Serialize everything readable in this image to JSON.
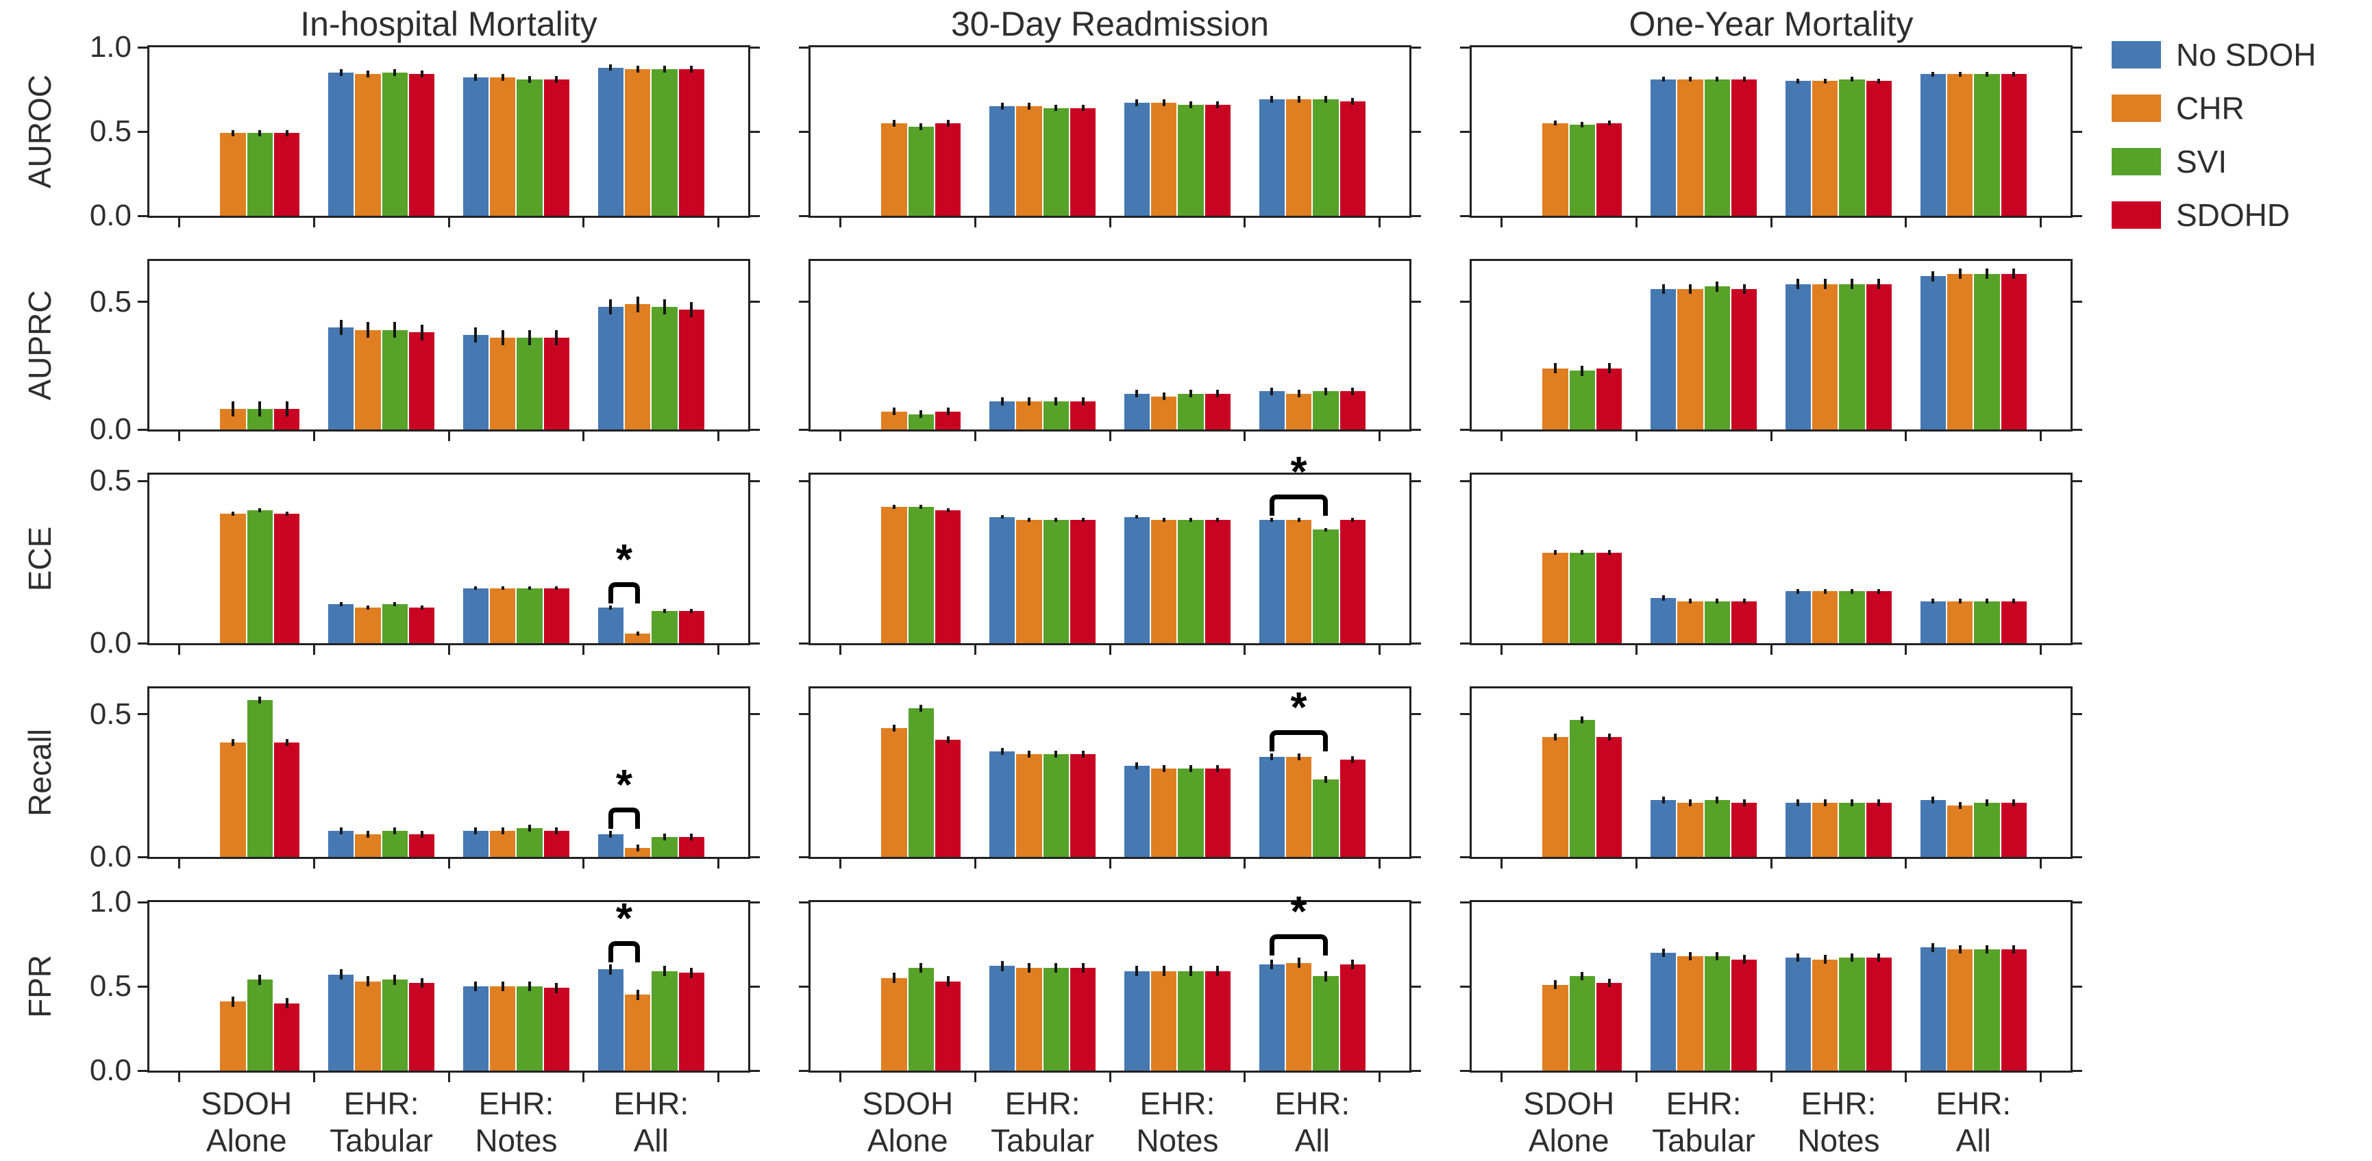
{
  "chart_data": {
    "type": "bar",
    "outcomes": [
      "In-hospital Mortality",
      "30-Day Readmission",
      "One-Year Mortality"
    ],
    "metrics": [
      "AUROC",
      "AUPRC",
      "ECE",
      "Recall",
      "FPR"
    ],
    "categories": [
      "SDOH Alone",
      "EHR: Tabular",
      "EHR: Notes",
      "EHR: All"
    ],
    "categories_lines": [
      [
        "SDOH",
        "Alone"
      ],
      [
        "EHR:",
        "Tabular"
      ],
      [
        "EHR:",
        "Notes"
      ],
      [
        "EHR:",
        "All"
      ]
    ],
    "series": [
      {
        "name": "No SDOH",
        "color": "#4678b2"
      },
      {
        "name": "CHR",
        "color": "#e07e22"
      },
      {
        "name": "SVI",
        "color": "#57a229"
      },
      {
        "name": "SDOHD",
        "color": "#c90322"
      }
    ],
    "sig_label": "*",
    "panels": [
      {
        "metric": "AUROC",
        "outcome": "In-hospital Mortality",
        "ylim": [
          0,
          1.0
        ],
        "ytick_values": [
          0,
          0.5,
          1
        ],
        "ytick_labels": [
          "0.0",
          "0.5",
          "1.0"
        ],
        "err": 0.02,
        "sig": null,
        "values": [
          [
            null,
            0.49,
            0.49,
            0.49
          ],
          [
            0.85,
            0.84,
            0.85,
            0.84
          ],
          [
            0.82,
            0.82,
            0.81,
            0.81
          ],
          [
            0.88,
            0.87,
            0.87,
            0.87
          ]
        ]
      },
      {
        "metric": "AUROC",
        "outcome": "30-Day Readmission",
        "ylim": [
          0,
          1.0
        ],
        "ytick_values": [
          0,
          0.5,
          1
        ],
        "ytick_labels": [
          "0.0",
          "0.5",
          "1.0"
        ],
        "err": 0.02,
        "sig": null,
        "values": [
          [
            null,
            0.55,
            0.53,
            0.55
          ],
          [
            0.65,
            0.65,
            0.64,
            0.64
          ],
          [
            0.67,
            0.67,
            0.66,
            0.66
          ],
          [
            0.69,
            0.69,
            0.69,
            0.68
          ]
        ]
      },
      {
        "metric": "AUROC",
        "outcome": "One-Year Mortality",
        "ylim": [
          0,
          1.0
        ],
        "ytick_values": [
          0,
          0.5,
          1
        ],
        "ytick_labels": [
          "0.0",
          "0.5",
          "1.0"
        ],
        "err": 0.015,
        "sig": null,
        "values": [
          [
            null,
            0.55,
            0.54,
            0.55
          ],
          [
            0.81,
            0.81,
            0.81,
            0.81
          ],
          [
            0.8,
            0.8,
            0.81,
            0.8
          ],
          [
            0.84,
            0.84,
            0.84,
            0.84
          ]
        ]
      },
      {
        "metric": "AUPRC",
        "outcome": "In-hospital Mortality",
        "ylim": [
          0,
          0.66
        ],
        "ytick_values": [
          0,
          0.5
        ],
        "ytick_labels": [
          "0.0",
          "0.5"
        ],
        "err": 0.03,
        "sig": null,
        "values": [
          [
            null,
            0.08,
            0.08,
            0.08
          ],
          [
            0.4,
            0.39,
            0.39,
            0.38
          ],
          [
            0.37,
            0.36,
            0.36,
            0.36
          ],
          [
            0.48,
            0.49,
            0.48,
            0.47
          ]
        ]
      },
      {
        "metric": "AUPRC",
        "outcome": "30-Day Readmission",
        "ylim": [
          0,
          0.66
        ],
        "ytick_values": [
          0,
          0.5
        ],
        "ytick_labels": [
          "0.0",
          "0.5"
        ],
        "err": 0.015,
        "sig": null,
        "values": [
          [
            null,
            0.07,
            0.06,
            0.07
          ],
          [
            0.11,
            0.11,
            0.11,
            0.11
          ],
          [
            0.14,
            0.13,
            0.14,
            0.14
          ],
          [
            0.15,
            0.14,
            0.15,
            0.15
          ]
        ]
      },
      {
        "metric": "AUPRC",
        "outcome": "One-Year Mortality",
        "ylim": [
          0,
          0.66
        ],
        "ytick_values": [
          0,
          0.5
        ],
        "ytick_labels": [
          "0.0",
          "0.5"
        ],
        "err": 0.02,
        "sig": null,
        "values": [
          [
            null,
            0.24,
            0.23,
            0.24
          ],
          [
            0.55,
            0.55,
            0.56,
            0.55
          ],
          [
            0.57,
            0.57,
            0.57,
            0.57
          ],
          [
            0.6,
            0.61,
            0.61,
            0.61
          ]
        ]
      },
      {
        "metric": "ECE",
        "outcome": "In-hospital Mortality",
        "ylim": [
          0,
          0.52
        ],
        "ytick_values": [
          0,
          0.5
        ],
        "ytick_labels": [
          "0.0",
          "0.5"
        ],
        "err": 0.006,
        "sig": {
          "group": 3,
          "from": 0,
          "to": 1
        },
        "values": [
          [
            null,
            0.4,
            0.41,
            0.4
          ],
          [
            0.12,
            0.11,
            0.12,
            0.11
          ],
          [
            0.17,
            0.17,
            0.17,
            0.17
          ],
          [
            0.11,
            0.03,
            0.1,
            0.1
          ]
        ]
      },
      {
        "metric": "ECE",
        "outcome": "30-Day Readmission",
        "ylim": [
          0,
          0.52
        ],
        "ytick_values": [
          0,
          0.5
        ],
        "ytick_labels": [
          "0.0",
          "0.5"
        ],
        "err": 0.006,
        "sig": {
          "group": 3,
          "from": 0,
          "to": 2
        },
        "values": [
          [
            null,
            0.42,
            0.42,
            0.41
          ],
          [
            0.39,
            0.38,
            0.38,
            0.38
          ],
          [
            0.39,
            0.38,
            0.38,
            0.38
          ],
          [
            0.38,
            0.38,
            0.35,
            0.38
          ]
        ]
      },
      {
        "metric": "ECE",
        "outcome": "One-Year Mortality",
        "ylim": [
          0,
          0.52
        ],
        "ytick_values": [
          0,
          0.5
        ],
        "ytick_labels": [
          "0.0",
          "0.5"
        ],
        "err": 0.008,
        "sig": null,
        "values": [
          [
            null,
            0.28,
            0.28,
            0.28
          ],
          [
            0.14,
            0.13,
            0.13,
            0.13
          ],
          [
            0.16,
            0.16,
            0.16,
            0.16
          ],
          [
            0.13,
            0.13,
            0.13,
            0.13
          ]
        ]
      },
      {
        "metric": "Recall",
        "outcome": "In-hospital Mortality",
        "ylim": [
          0,
          0.59
        ],
        "ytick_values": [
          0,
          0.5
        ],
        "ytick_labels": [
          "0.0",
          "0.5"
        ],
        "err": 0.012,
        "sig": {
          "group": 3,
          "from": 0,
          "to": 1
        },
        "values": [
          [
            null,
            0.4,
            0.55,
            0.4
          ],
          [
            0.09,
            0.08,
            0.09,
            0.08
          ],
          [
            0.09,
            0.09,
            0.1,
            0.09
          ],
          [
            0.08,
            0.03,
            0.07,
            0.07
          ]
        ]
      },
      {
        "metric": "Recall",
        "outcome": "30-Day Readmission",
        "ylim": [
          0,
          0.59
        ],
        "ytick_values": [
          0,
          0.5
        ],
        "ytick_labels": [
          "0.0",
          "0.5"
        ],
        "err": 0.012,
        "sig": {
          "group": 3,
          "from": 0,
          "to": 2
        },
        "values": [
          [
            null,
            0.45,
            0.52,
            0.41
          ],
          [
            0.37,
            0.36,
            0.36,
            0.36
          ],
          [
            0.32,
            0.31,
            0.31,
            0.31
          ],
          [
            0.35,
            0.35,
            0.27,
            0.34
          ]
        ]
      },
      {
        "metric": "Recall",
        "outcome": "One-Year Mortality",
        "ylim": [
          0,
          0.59
        ],
        "ytick_values": [
          0,
          0.5
        ],
        "ytick_labels": [
          "0.0",
          "0.5"
        ],
        "err": 0.012,
        "sig": null,
        "values": [
          [
            null,
            0.42,
            0.48,
            0.42
          ],
          [
            0.2,
            0.19,
            0.2,
            0.19
          ],
          [
            0.19,
            0.19,
            0.19,
            0.19
          ],
          [
            0.2,
            0.18,
            0.19,
            0.19
          ]
        ]
      },
      {
        "metric": "FPR",
        "outcome": "In-hospital Mortality",
        "ylim": [
          0,
          1.0
        ],
        "ytick_values": [
          0,
          0.5,
          1
        ],
        "ytick_labels": [
          "0.0",
          "0.5",
          "1.0"
        ],
        "err": 0.03,
        "sig": {
          "group": 3,
          "from": 0,
          "to": 1
        },
        "values": [
          [
            null,
            0.41,
            0.54,
            0.4
          ],
          [
            0.57,
            0.53,
            0.54,
            0.52
          ],
          [
            0.5,
            0.5,
            0.5,
            0.49
          ],
          [
            0.6,
            0.45,
            0.59,
            0.58
          ]
        ]
      },
      {
        "metric": "FPR",
        "outcome": "30-Day Readmission",
        "ylim": [
          0,
          1.0
        ],
        "ytick_values": [
          0,
          0.5,
          1
        ],
        "ytick_labels": [
          "0.0",
          "0.5",
          "1.0"
        ],
        "err": 0.03,
        "sig": {
          "group": 3,
          "from": 0,
          "to": 2
        },
        "values": [
          [
            null,
            0.55,
            0.61,
            0.53
          ],
          [
            0.62,
            0.61,
            0.61,
            0.61
          ],
          [
            0.59,
            0.59,
            0.59,
            0.59
          ],
          [
            0.63,
            0.64,
            0.56,
            0.63
          ]
        ]
      },
      {
        "metric": "FPR",
        "outcome": "One-Year Mortality",
        "ylim": [
          0,
          1.0
        ],
        "ytick_values": [
          0,
          0.5,
          1
        ],
        "ytick_labels": [
          "0.0",
          "0.5",
          "1.0"
        ],
        "err": 0.025,
        "sig": null,
        "values": [
          [
            null,
            0.51,
            0.56,
            0.52
          ],
          [
            0.7,
            0.68,
            0.68,
            0.66
          ],
          [
            0.67,
            0.66,
            0.67,
            0.67
          ],
          [
            0.73,
            0.72,
            0.72,
            0.72
          ]
        ]
      }
    ]
  }
}
